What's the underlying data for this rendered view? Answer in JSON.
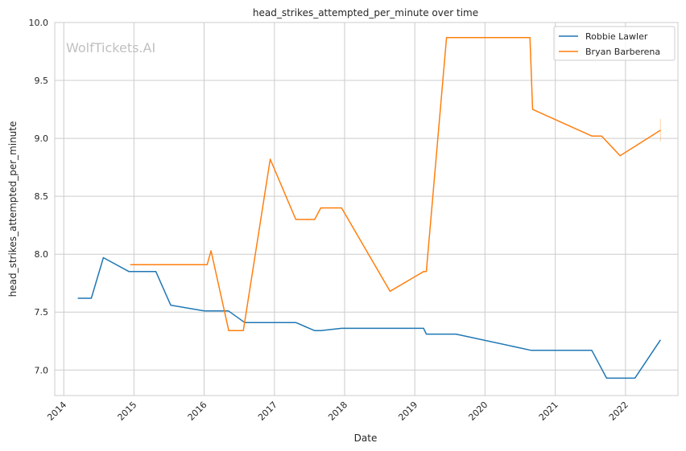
{
  "chart_data": {
    "type": "line",
    "title": "head_strikes_attempted_per_minute over time",
    "xlabel": "Date",
    "ylabel": "head_strikes_attempted_per_minute",
    "watermark": "WolfTickets.AI",
    "x_ticks": [
      "2014",
      "2015",
      "2016",
      "2017",
      "2018",
      "2019",
      "2020",
      "2021",
      "2022"
    ],
    "y_ticks": [
      "7.0",
      "7.5",
      "8.0",
      "8.5",
      "9.0",
      "9.5",
      "10.0"
    ],
    "ylim": [
      6.78,
      10.0
    ],
    "xlim": [
      "2013-11-15",
      "2022-10-01"
    ],
    "grid": true,
    "legend_position": "top-right",
    "series": [
      {
        "name": "Robbie Lawler",
        "color": "#1f77b4",
        "x": [
          "2014-03-15",
          "2014-05-24",
          "2014-07-26",
          "2014-12-06",
          "2015-04-25",
          "2015-07-11",
          "2016-01-02",
          "2016-05-07",
          "2016-07-30",
          "2017-04-22",
          "2017-07-29",
          "2017-08-30",
          "2017-12-16",
          "2019-02-16",
          "2019-03-02",
          "2019-08-03",
          "2020-08-29",
          "2021-07-10",
          "2021-09-25",
          "2022-02-19",
          "2022-07-02"
        ],
        "values": [
          7.62,
          7.62,
          7.97,
          7.85,
          7.85,
          7.56,
          7.51,
          7.51,
          7.41,
          7.41,
          7.34,
          7.34,
          7.36,
          7.36,
          7.31,
          7.31,
          7.17,
          7.17,
          6.93,
          6.93,
          7.26
        ]
      },
      {
        "name": "Bryan Barberena",
        "color": "#ff7f0e",
        "x": [
          "2014-12-13",
          "2016-01-17",
          "2016-02-06",
          "2016-05-08",
          "2016-07-23",
          "2016-12-10",
          "2017-04-22",
          "2017-07-29",
          "2017-08-30",
          "2017-12-16",
          "2018-08-25",
          "2019-02-16",
          "2019-03-02",
          "2019-06-15",
          "2020-08-22",
          "2020-09-05",
          "2021-07-10",
          "2021-08-30",
          "2021-12-04",
          "2022-07-02"
        ],
        "values": [
          7.91,
          7.91,
          8.03,
          7.34,
          7.34,
          8.82,
          8.3,
          8.3,
          8.4,
          8.4,
          7.68,
          7.85,
          7.85,
          9.87,
          9.87,
          9.25,
          9.02,
          9.02,
          8.85,
          9.07
        ]
      }
    ]
  }
}
